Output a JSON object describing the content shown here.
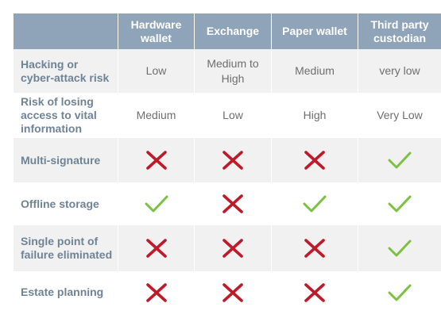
{
  "colors": {
    "header_bg": "#8fa4b8",
    "label_text": "#6f8396",
    "cross": "#c0192a",
    "check": "#7cc242"
  },
  "columns": [
    "",
    "Hardware wallet",
    "Exchange",
    "Paper wallet",
    "Third party custodian"
  ],
  "rows": [
    {
      "label": "Hacking or cyber-attack risk",
      "cells": [
        "Low",
        "Medium to High",
        "Medium",
        "very low"
      ]
    },
    {
      "label": "Risk of losing access to vital information",
      "cells": [
        "Medium",
        "Low",
        "High",
        "Very Low"
      ]
    },
    {
      "label": "Multi-signature",
      "cells": [
        "cross-icon",
        "cross-icon",
        "cross-icon",
        "check-icon"
      ]
    },
    {
      "label": "Offline storage",
      "cells": [
        "check-icon",
        "cross-icon",
        "check-icon",
        "check-icon"
      ]
    },
    {
      "label": "Single point of failure eliminated",
      "cells": [
        "cross-icon",
        "cross-icon",
        "cross-icon",
        "check-icon"
      ]
    },
    {
      "label": "Estate planning",
      "cells": [
        "cross-icon",
        "cross-icon",
        "cross-icon",
        "check-icon"
      ]
    }
  ]
}
